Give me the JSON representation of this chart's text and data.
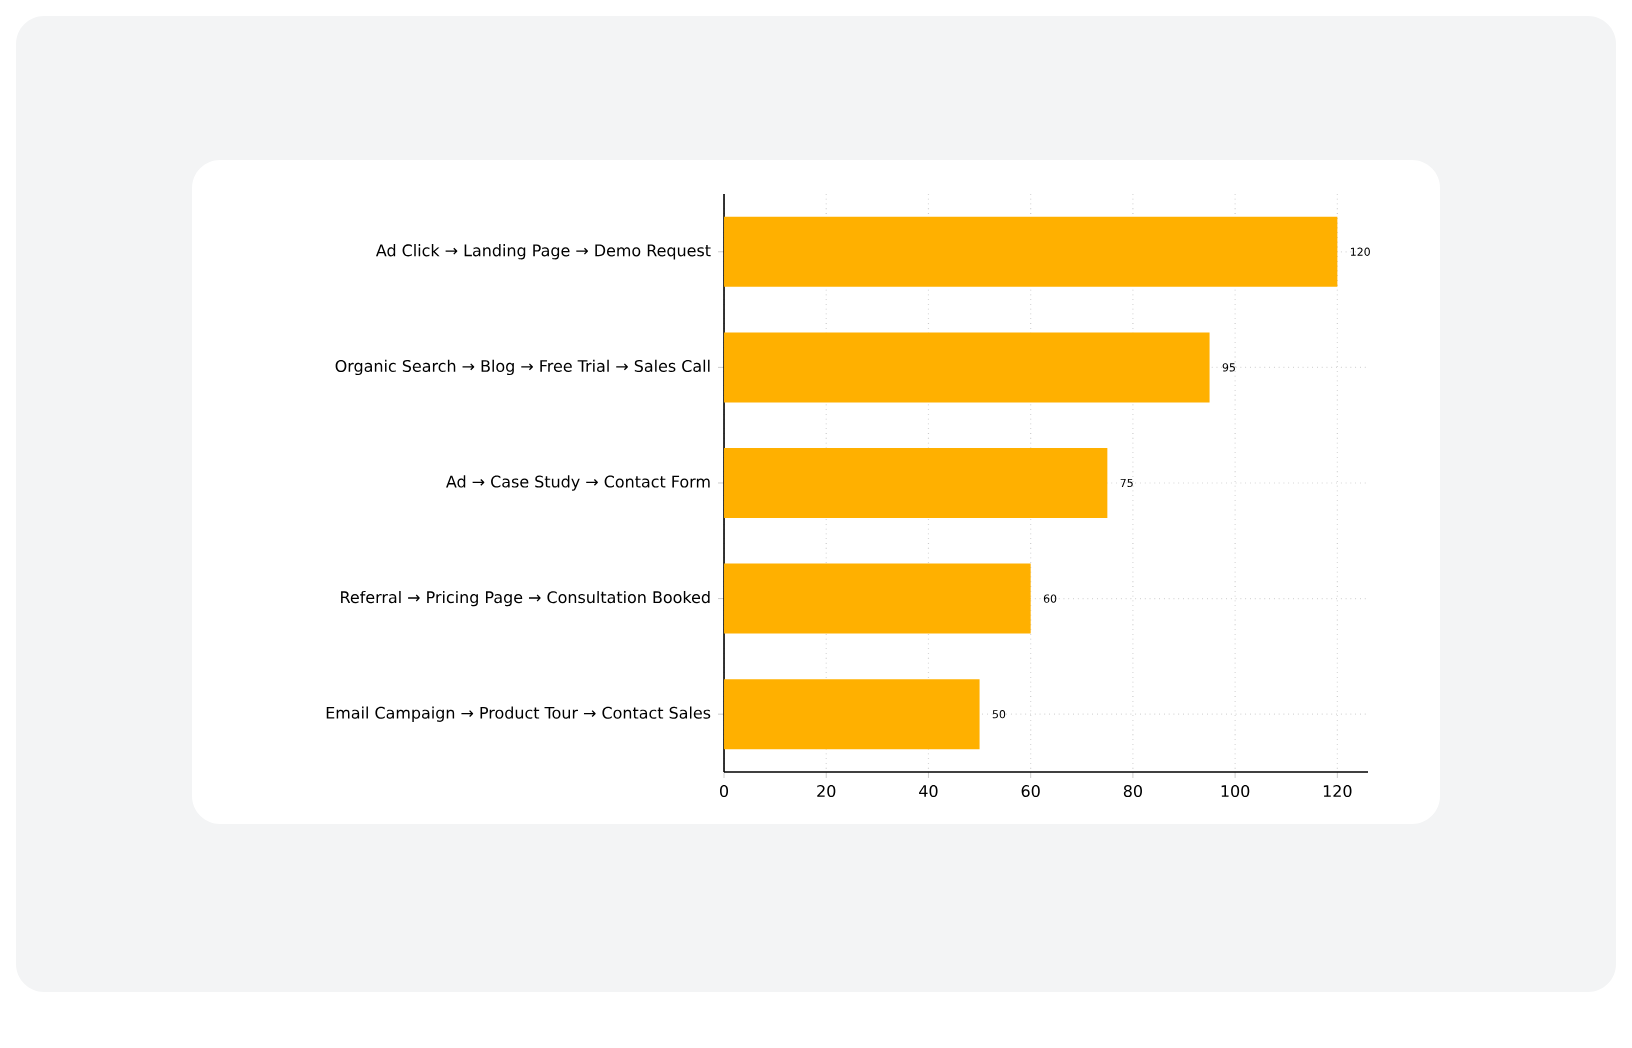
{
  "chart_data": {
    "type": "bar",
    "orientation": "horizontal",
    "categories": [
      "Ad Click → Landing Page → Demo Request",
      "Organic Search → Blog → Free Trial → Sales Call",
      "Ad → Case Study → Contact Form",
      "Referral → Pricing Page → Consultation Booked",
      "Email Campaign → Product Tour → Contact Sales"
    ],
    "values": [
      120,
      95,
      75,
      60,
      50
    ],
    "color": "#ffb000",
    "data_labels": true,
    "xlim": [
      0,
      126
    ],
    "xticks": [
      0,
      20,
      40,
      60,
      80,
      100,
      120
    ],
    "grid": true
  }
}
